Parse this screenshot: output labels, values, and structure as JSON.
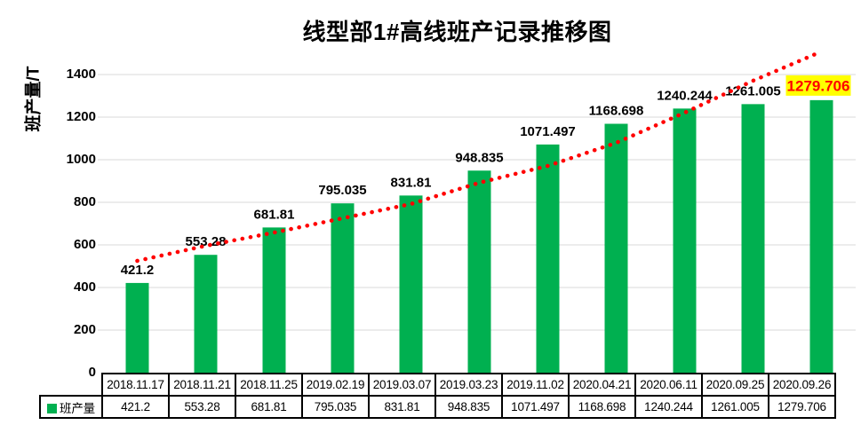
{
  "chart_data": {
    "type": "bar",
    "title": "线型部1#高线班产记录推移图",
    "ylabel": "班产量/T",
    "categories": [
      "2018.11.17",
      "2018.11.21",
      "2018.11.25",
      "2019.02.19",
      "2019.03.07",
      "2019.03.23",
      "2019.11.02",
      "2020.04.21",
      "2020.06.11",
      "2020.09.25",
      "2020.09.26"
    ],
    "series": [
      {
        "name": "班产量",
        "values": [
          421.2,
          553.28,
          681.81,
          795.035,
          831.81,
          948.835,
          1071.497,
          1168.698,
          1240.244,
          1261.005,
          1279.706
        ]
      }
    ],
    "values_display": [
      "421.2",
      "553.28",
      "681.81",
      "795.035",
      "831.81",
      "948.835",
      "1071.497",
      "1168.698",
      "1240.244",
      "1261.005",
      "1279.706"
    ],
    "ylim": [
      0,
      1400
    ],
    "ytick_step": 200,
    "grid": true,
    "legend_label": "班产量",
    "legend_position": "bottom-table",
    "bar_color": "#00B050",
    "gridline_color": "#D9D9D9",
    "trendline": {
      "style": "dotted",
      "color": "#FF0000",
      "values": [
        525,
        596,
        658,
        725,
        792,
        892,
        971,
        1079,
        1221,
        1371,
        1508
      ]
    },
    "highlight_last_label": {
      "text": "1279.706",
      "text_color": "#FF0000",
      "background": "#FFFF00"
    }
  }
}
